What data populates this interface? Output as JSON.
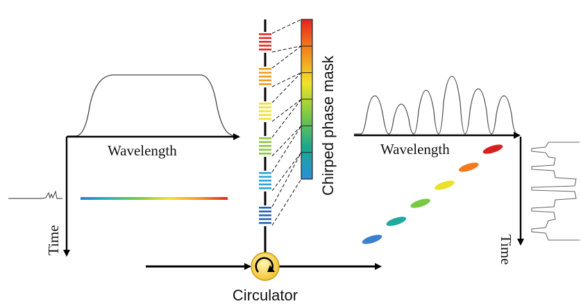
{
  "labels": {
    "input_wavelength": "Wavelength",
    "input_time": "Time",
    "mask": "Chirped phase mask",
    "output_wavelength": "Wavelength",
    "output_time": "Time",
    "circulator": "Circulator"
  },
  "grating_colors": [
    "#e8231f",
    "#f29a1c",
    "#f1e229",
    "#8cc63f",
    "#2aa4dc",
    "#2563b8"
  ],
  "mask_gradient": [
    "#e8231f",
    "#f28a1c",
    "#f1e229",
    "#7ac943",
    "#1aa88c",
    "#2a8fdc"
  ],
  "rainbow_line": [
    "#2a7fd4",
    "#2bb5a8",
    "#7ac943",
    "#f1e229",
    "#f29a1c",
    "#e8231f"
  ],
  "chirp_pulse_colors": [
    "#3a7fd0",
    "#1fa9a0",
    "#7ac943",
    "#e9e12a",
    "#f27a1c",
    "#d61f1f"
  ],
  "circulator_color": "#f4c430"
}
